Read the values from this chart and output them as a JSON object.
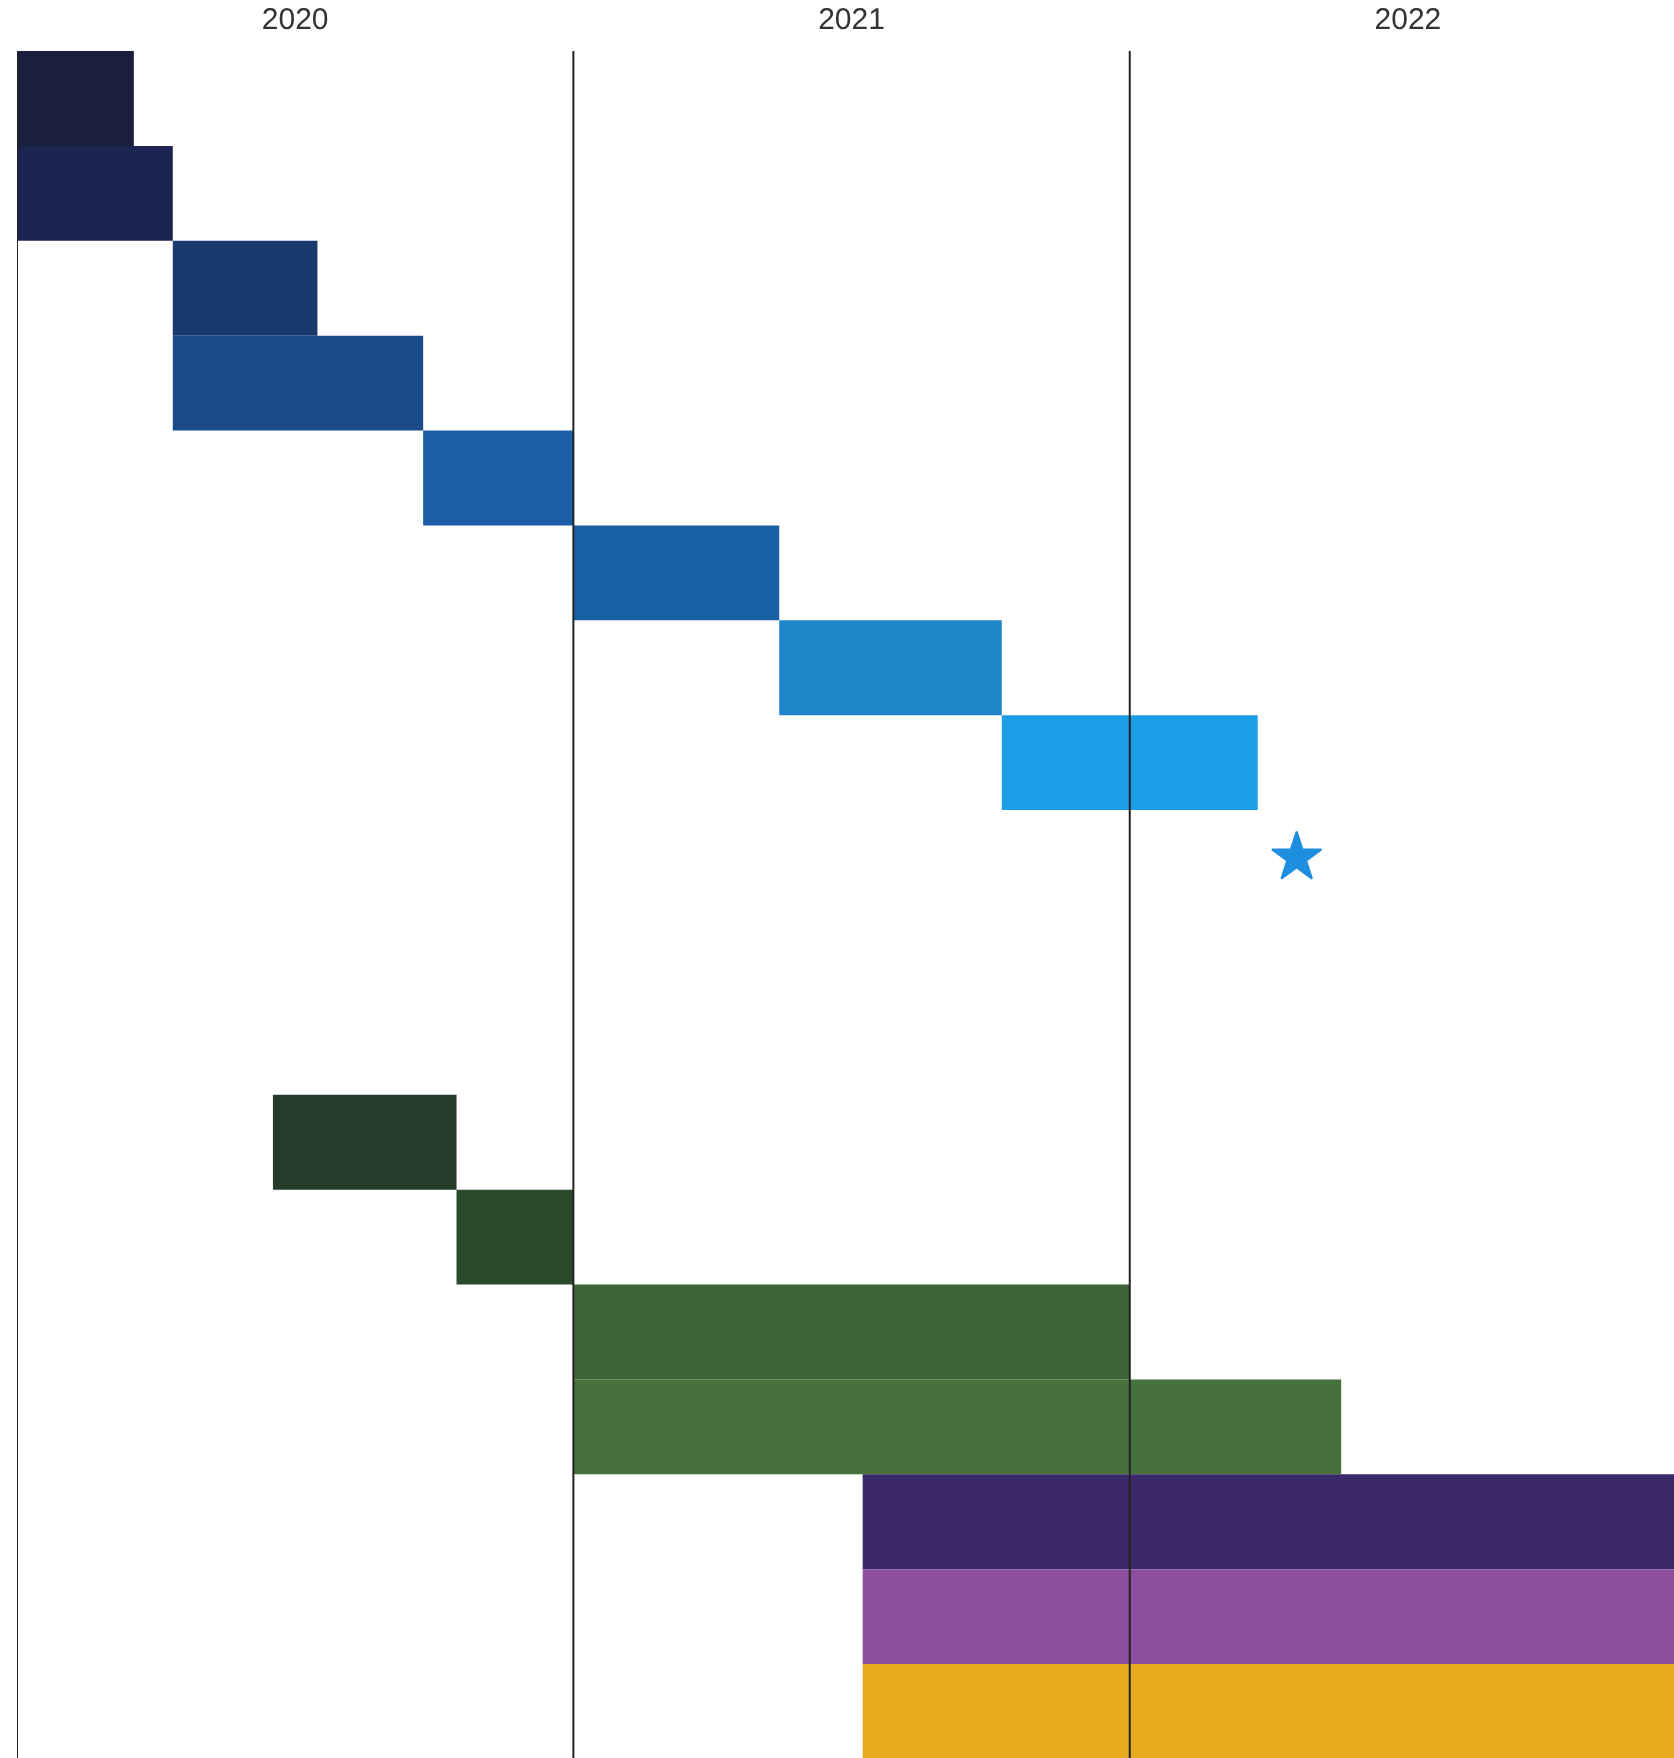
{
  "chart_data": {
    "type": "bar",
    "orientation": "horizontal",
    "tick_labels": "x",
    "grid": false,
    "categories": [
      null,
      null,
      null,
      null,
      null,
      null,
      null,
      null,
      null,
      null,
      null,
      null,
      null,
      null,
      null,
      null,
      null,
      null
    ],
    "xlim": [
      2020,
      2022.98
    ],
    "xticks": [
      {
        "value": 2020.5,
        "label": "2020"
      },
      {
        "value": 2021.5,
        "label": "2021"
      },
      {
        "value": 2022.5,
        "label": "2022"
      }
    ],
    "ref_lines": [
      {
        "axis": "x",
        "value": 2020,
        "color": "#222222"
      },
      {
        "axis": "x",
        "value": 2021,
        "color": "#222222"
      },
      {
        "axis": "x",
        "value": 2022,
        "color": "#222222"
      }
    ],
    "series": [
      {
        "values": [
          0.21,
          0.28,
          0.26,
          0.45,
          0.27,
          0.37,
          0.4,
          0.46,
          null,
          null,
          null,
          0.33,
          0.21,
          1.0,
          1.38,
          1.46,
          1.46,
          1.46
        ],
        "base": [
          2020.0,
          2020.0,
          2020.28,
          2020.28,
          2020.73,
          2021.0,
          2021.37,
          2021.77,
          null,
          null,
          null,
          2020.46,
          2020.79,
          2021.0,
          2021.0,
          2021.52,
          2021.52,
          2021.52
        ],
        "colors": [
          "#1c1f3c",
          "#1c2550",
          "#1a3a6e",
          "#1a4a8a",
          "#1a5ea8",
          "#1a62a6",
          "#1e86c8",
          "#1c9ee6",
          null,
          null,
          null,
          "#243b28",
          "#2b4a2c",
          "#3c6436",
          "#46703c",
          "#3a2868",
          "#8c4fa0",
          "#e8aa1c"
        ]
      },
      {
        "type": "scatter",
        "marker": "star",
        "color": "#1e8ee0",
        "values": [
          null,
          null,
          null,
          null,
          null,
          null,
          null,
          null,
          2022.3,
          null,
          null,
          null,
          null,
          null,
          null,
          null,
          null,
          null
        ]
      }
    ]
  }
}
